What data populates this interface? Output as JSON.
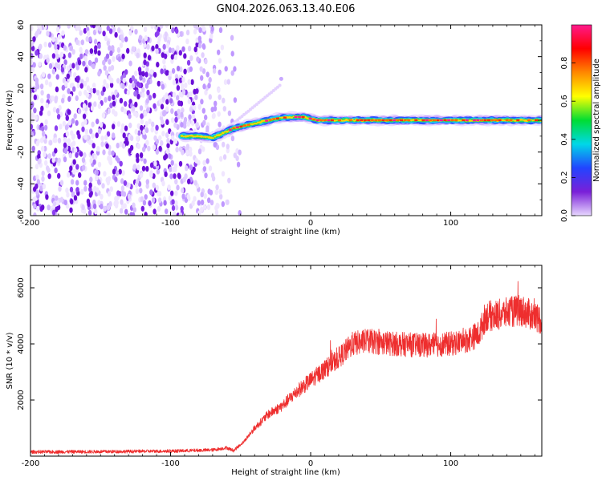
{
  "title": "GN04.2026.063.13.40.E06",
  "chart_data": [
    {
      "type": "heatmap",
      "name": "spectrogram",
      "xlabel": "Height of straight line (km)",
      "ylabel": "Frequency (Hz)",
      "xlim": [
        -200,
        165
      ],
      "ylim": [
        -60,
        60
      ],
      "xticks": [
        "-200",
        "-100",
        "0",
        "100"
      ],
      "xtick_values": [
        -200,
        -100,
        0,
        100
      ],
      "yticks": [
        "60",
        "40",
        "20",
        "0",
        "-20",
        "-40",
        "-60"
      ],
      "ytick_values": [
        60,
        40,
        20,
        0,
        -20,
        -40,
        -60
      ],
      "noise_region_km": [
        -200,
        -58
      ],
      "trace": [
        {
          "x": -92,
          "f": -10
        },
        {
          "x": -80,
          "f": -10
        },
        {
          "x": -70,
          "f": -11
        },
        {
          "x": -62,
          "f": -8
        },
        {
          "x": -55,
          "f": -5
        },
        {
          "x": -45,
          "f": -3
        },
        {
          "x": -35,
          "f": -1
        },
        {
          "x": -25,
          "f": 1
        },
        {
          "x": -15,
          "f": 2
        },
        {
          "x": -5,
          "f": 2
        },
        {
          "x": 5,
          "f": 0
        },
        {
          "x": 30,
          "f": 0
        },
        {
          "x": 80,
          "f": 0
        },
        {
          "x": 120,
          "f": 0
        },
        {
          "x": 165,
          "f": 0
        }
      ],
      "colorbar": {
        "label": "Normalized spectral amplitude",
        "ticks": [
          "0.0",
          "0.2",
          "0.4",
          "0.6",
          "0.8"
        ],
        "tick_values": [
          0.0,
          0.2,
          0.4,
          0.6,
          0.8
        ],
        "range": [
          0,
          1
        ],
        "colors": [
          "#e8d8ff",
          "#7a1fd8",
          "#2244ff",
          "#00d8e8",
          "#00dd33",
          "#ffff00",
          "#ff8800",
          "#ff0000",
          "#ff1a8c"
        ]
      }
    },
    {
      "type": "line",
      "name": "snr",
      "xlabel": "Height of straight line (km)",
      "ylabel": "SNR (10 * v/v)",
      "xlim": [
        -200,
        165
      ],
      "ylim": [
        0,
        6800
      ],
      "xticks": [
        "-200",
        "-100",
        "0",
        "100"
      ],
      "xtick_values": [
        -200,
        -100,
        0,
        100
      ],
      "yticks": [
        "6000",
        "4000",
        "2000"
      ],
      "ytick_values": [
        6000,
        4000,
        2000
      ],
      "color": "#ee2e2e",
      "x": [
        -200,
        -150,
        -100,
        -70,
        -60,
        -55,
        -48,
        -40,
        -30,
        -20,
        -10,
        0,
        10,
        20,
        30,
        40,
        60,
        80,
        100,
        110,
        120,
        125,
        130,
        140,
        150,
        165
      ],
      "y": [
        150,
        160,
        180,
        220,
        300,
        200,
        500,
        1000,
        1500,
        1800,
        2300,
        2700,
        3100,
        3500,
        4000,
        4100,
        4000,
        3950,
        4000,
        4100,
        4350,
        5000,
        5000,
        5100,
        5200,
        4850
      ]
    }
  ]
}
